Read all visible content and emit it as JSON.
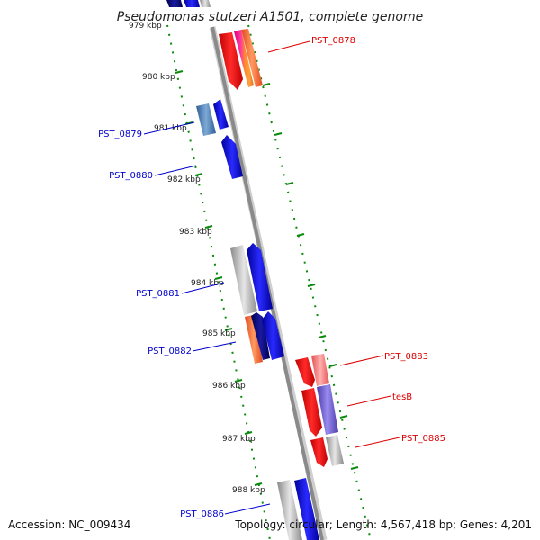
{
  "title": "Pseudomonas stutzeri A1501, complete genome",
  "footer": {
    "accession": "Accession: NC_009434",
    "topology": "Topology: circular; Length: 4,567,418 bp; Genes: 4,201"
  },
  "ruler": {
    "ticks": [
      "979 kbp",
      "980 kbp",
      "981 kbp",
      "982 kbp",
      "983 kbp",
      "984 kbp",
      "985 kbp",
      "986 kbp",
      "987 kbp",
      "988 kbp"
    ]
  },
  "gene_labels": {
    "PST_0878": "PST_0878",
    "PST_0879": "PST_0879",
    "PST_0880": "PST_0880",
    "PST_0881": "PST_0881",
    "PST_0882": "PST_0882",
    "PST_0883": "PST_0883",
    "tesB": "tesB",
    "PST_0885": "PST_0885",
    "PST_0886": "PST_0886"
  },
  "colors": {
    "forward_label": "#dd0000",
    "reverse_label": "#0000cc",
    "backbone": "#8a8a8a",
    "dots": "#0a8a0a"
  }
}
